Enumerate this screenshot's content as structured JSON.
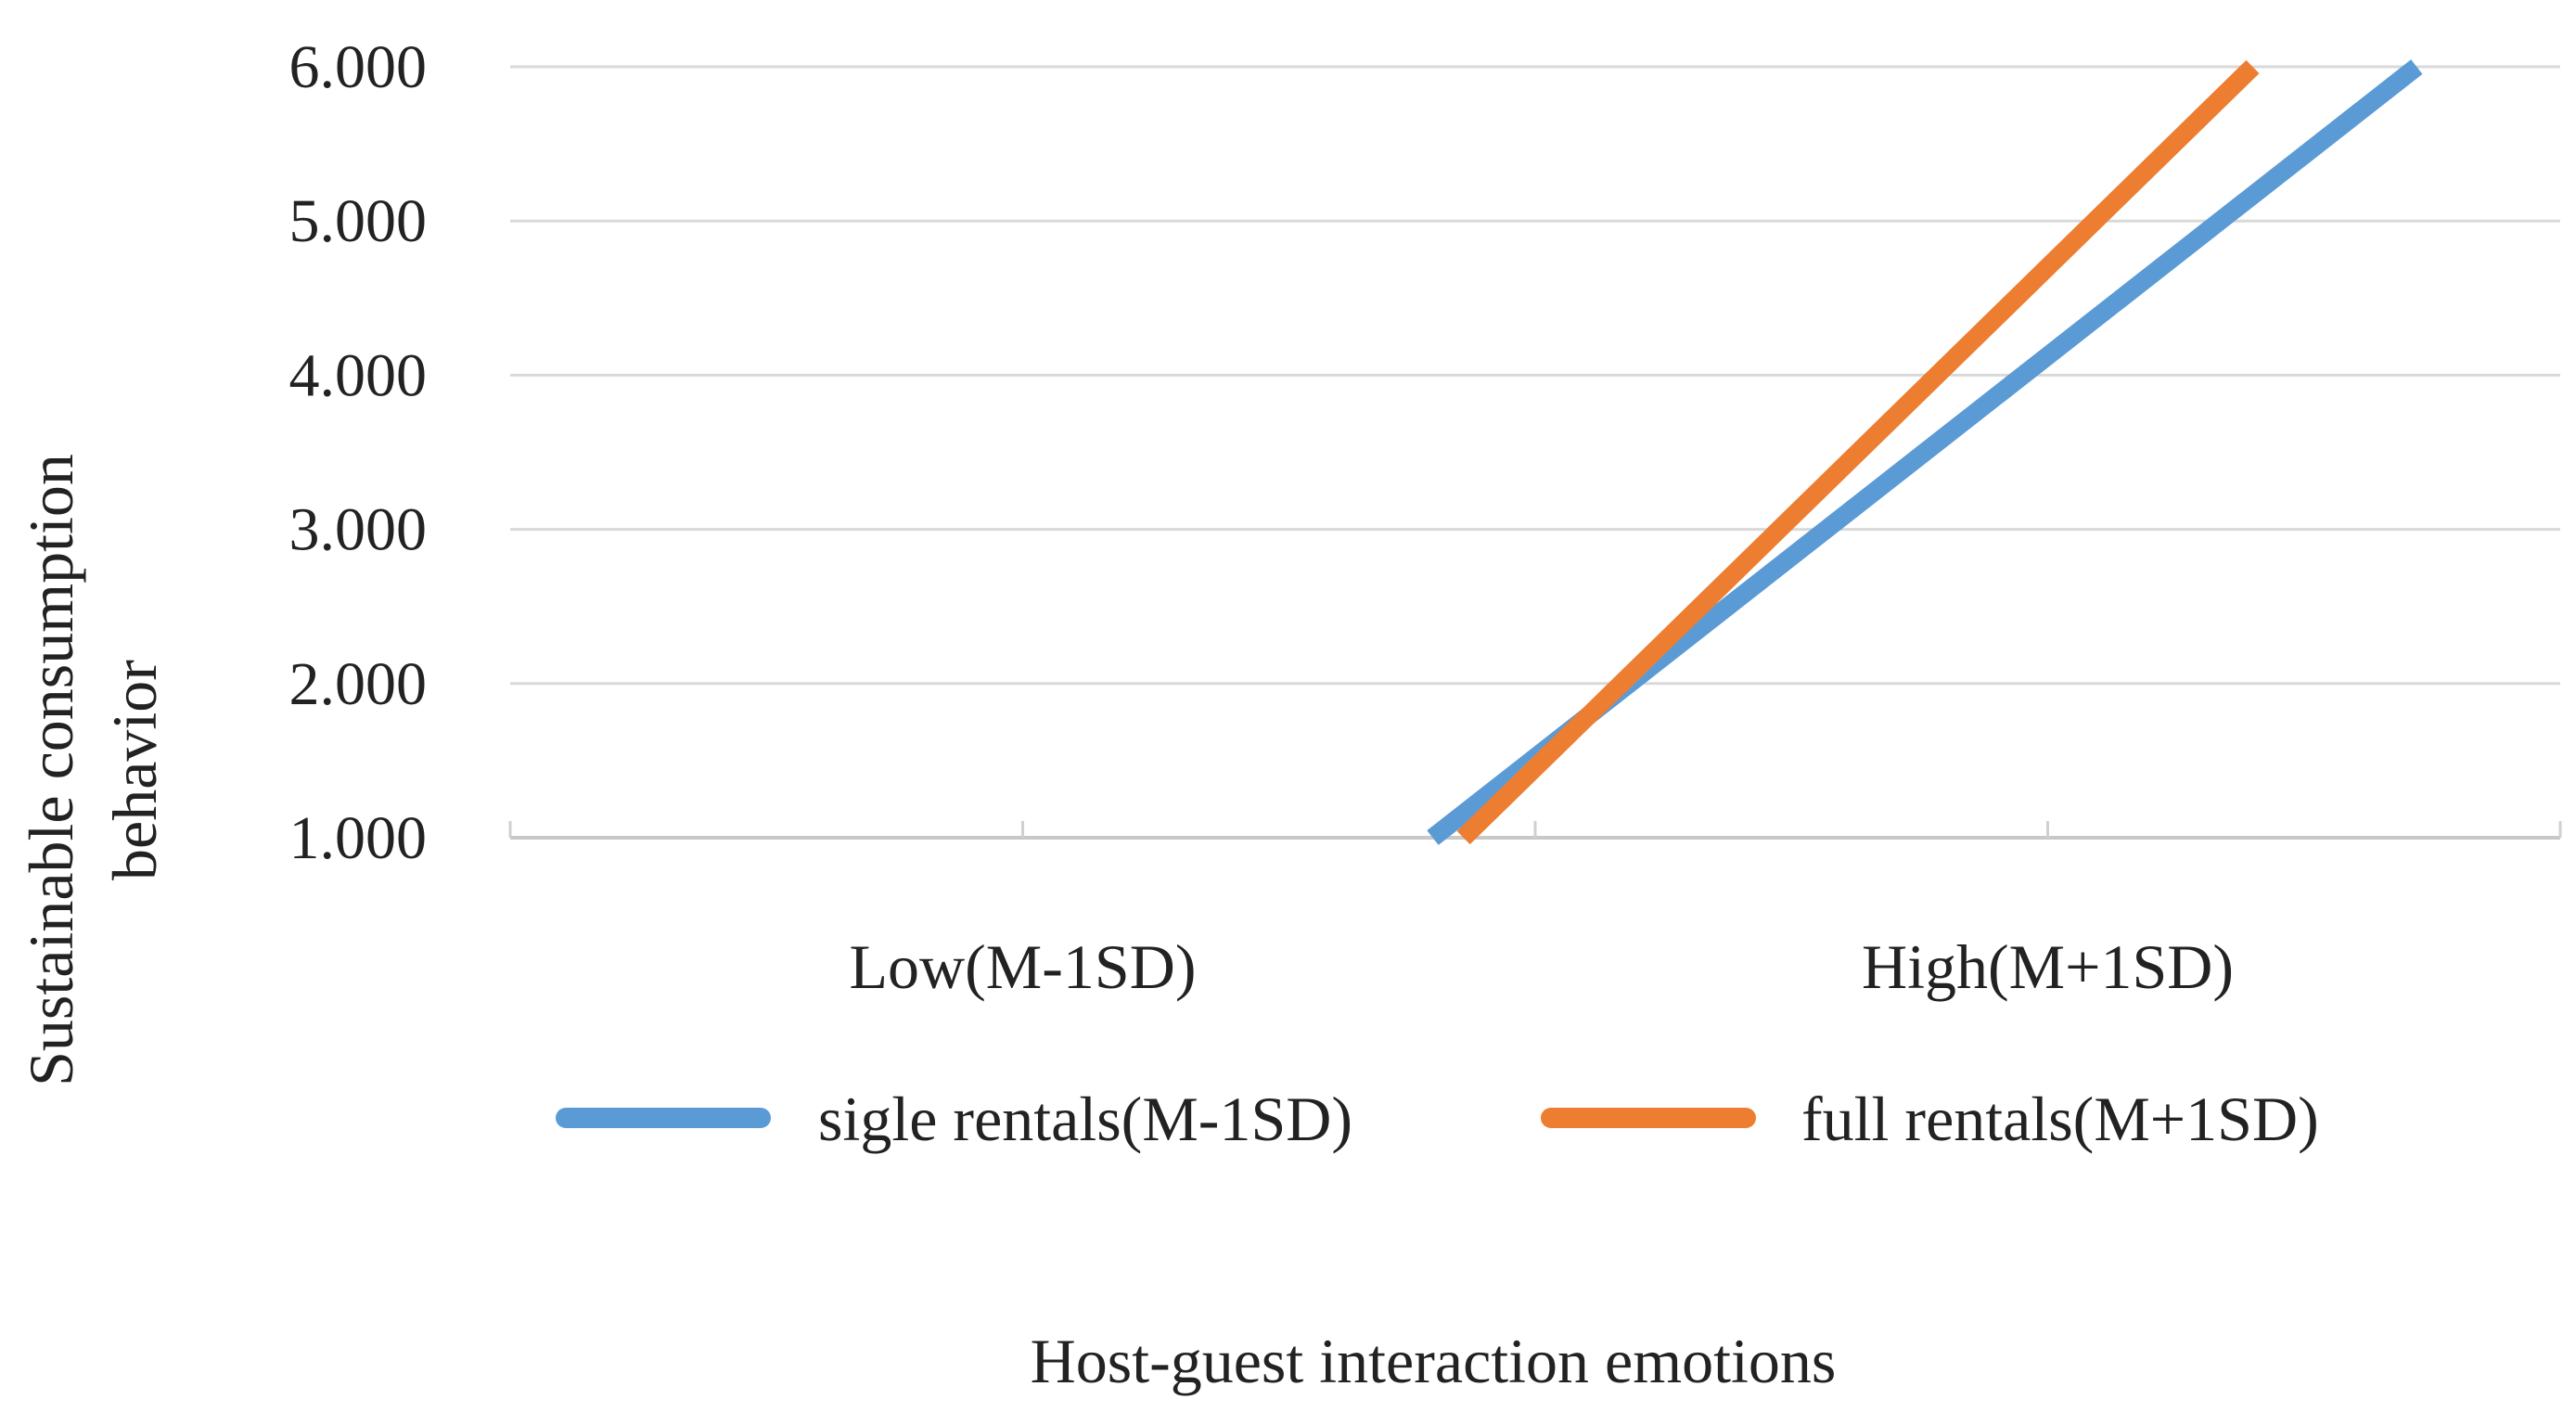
{
  "chart_data": {
    "type": "line",
    "title": "",
    "xlabel": "Host-guest interaction emotions",
    "ylabel_lines": [
      "Sustainable consumption",
      "behavior"
    ],
    "categories": [
      "Low(M-1SD)",
      "High(M+1SD)"
    ],
    "y_ticks": [
      "1.000",
      "2.000",
      "3.000",
      "4.000",
      "5.000",
      "6.000"
    ],
    "ylim": [
      1,
      6
    ],
    "grid": true,
    "legend_position": "bottom",
    "series": [
      {
        "name": "sigle rentals(M-1SD)",
        "color": "#5b9bd5",
        "points": [
          {
            "x": 0.9,
            "y": 1.0
          },
          {
            "x": 1.86,
            "y": 6.0
          }
        ]
      },
      {
        "name": "full rentals(M+1SD)",
        "color": "#ed7d31",
        "points": [
          {
            "x": 0.93,
            "y": 1.0
          },
          {
            "x": 1.7,
            "y": 6.0
          }
        ]
      }
    ]
  }
}
